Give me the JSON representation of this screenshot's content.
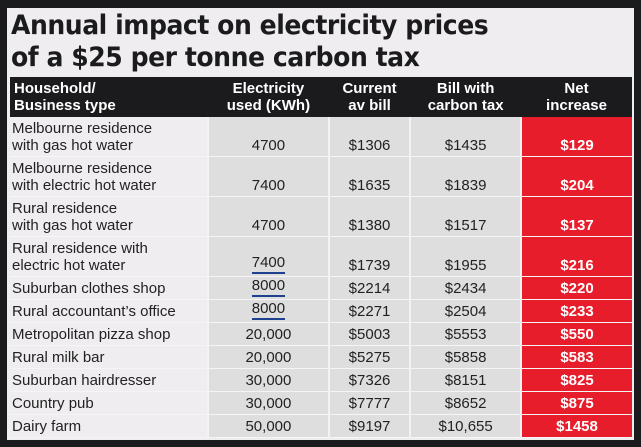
{
  "title_line1": "Annual impact on electricity prices",
  "title_line2": "of a $25 per tonne carbon tax",
  "colors": {
    "background": "#efedef",
    "border": "#1b1a1c",
    "cell_gray": "#dedede",
    "net_red": "#e81d2b",
    "underline_blue": "#1f3f8f"
  },
  "chart_data": {
    "type": "table",
    "title": "Annual impact on electricity prices of a $25 per tonne carbon tax",
    "columns": [
      "Household/ Business type",
      "Electricity used (KWh)",
      "Current av bill",
      "Bill with carbon tax",
      "Net increase"
    ],
    "rows": [
      {
        "type_l1": "Melbourne residence",
        "type_l2": "with gas hot water",
        "kwh": "4700",
        "current": "$1306",
        "with_tax": "$1435",
        "net": "$129"
      },
      {
        "type_l1": "Melbourne residence",
        "type_l2": "with electric hot water",
        "kwh": "7400",
        "current": "$1635",
        "with_tax": "$1839",
        "net": "$204"
      },
      {
        "type_l1": "Rural residence",
        "type_l2": "with gas hot water",
        "kwh": "4700",
        "current": "$1380",
        "with_tax": "$1517",
        "net": "$137"
      },
      {
        "type_l1": "Rural residence with",
        "type_l2": "electric hot water",
        "kwh": "7400",
        "current": "$1739",
        "with_tax": "$1955",
        "net": "$216"
      },
      {
        "type_l1": "Suburban clothes shop",
        "kwh": "8000",
        "current": "$2214",
        "with_tax": "$2434",
        "net": "$220"
      },
      {
        "type_l1": "Rural accountant’s office",
        "kwh": "8000",
        "current": "$2271",
        "with_tax": "$2504",
        "net": "$233"
      },
      {
        "type_l1": "Metropolitan pizza shop",
        "kwh": "20,000",
        "current": "$5003",
        "with_tax": "$5553",
        "net": "$550"
      },
      {
        "type_l1": "Rural milk bar",
        "kwh": "20,000",
        "current": "$5275",
        "with_tax": "$5858",
        "net": "$583"
      },
      {
        "type_l1": "Suburban hairdresser",
        "kwh": "30,000",
        "current": "$7326",
        "with_tax": "$8151",
        "net": "$825"
      },
      {
        "type_l1": "Country pub",
        "kwh": "30,000",
        "current": "$7777",
        "with_tax": "$8652",
        "net": "$875"
      },
      {
        "type_l1": "Dairy farm",
        "kwh": "50,000",
        "current": "$9197",
        "with_tax": "$10,655",
        "net": "$1458"
      }
    ]
  },
  "headers": {
    "c0_l1": "Household/",
    "c0_l2": "Business type",
    "c1_l1": "Electricity",
    "c1_l2": "used (KWh)",
    "c2_l1": "Current",
    "c2_l2": "av bill",
    "c3_l1": "Bill with",
    "c3_l2": "carbon tax",
    "c4_l1": "Net",
    "c4_l2": "increase"
  }
}
